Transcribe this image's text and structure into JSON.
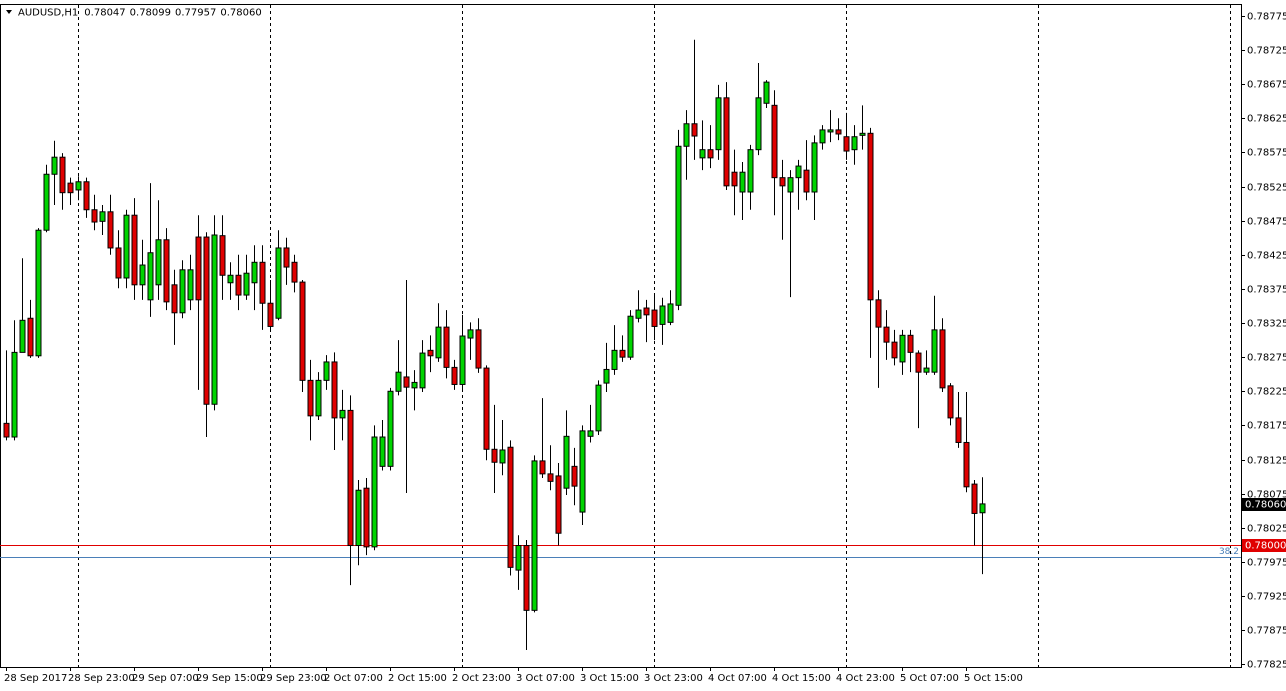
{
  "chart_data": {
    "type": "candlestick",
    "title": "AUDUSD,H1",
    "header_ohlc": [
      "0.78047",
      "0.78099",
      "0.77957",
      "0.78060"
    ],
    "categories": [
      "28 Sep 2017",
      null,
      null,
      null,
      null,
      null,
      null,
      null,
      "28 Sep 23:00",
      null,
      null,
      null,
      null,
      null,
      null,
      null,
      "29 Sep 07:00",
      null,
      null,
      null,
      null,
      null,
      null,
      null,
      "29 Sep 15:00",
      null,
      null,
      null,
      null,
      null,
      null,
      null,
      "29 Sep 23:00",
      null,
      null,
      null,
      null,
      null,
      null,
      null,
      "2 Oct 07:00",
      null,
      null,
      null,
      null,
      null,
      null,
      null,
      "2 Oct 15:00",
      null,
      null,
      null,
      null,
      null,
      null,
      null,
      "2 Oct 23:00",
      null,
      null,
      null,
      null,
      null,
      null,
      null,
      "3 Oct 07:00",
      null,
      null,
      null,
      null,
      null,
      null,
      null,
      "3 Oct 15:00",
      null,
      null,
      null,
      null,
      null,
      null,
      null,
      "3 Oct 23:00",
      null,
      null,
      null,
      null,
      null,
      null,
      null,
      "4 Oct 07:00",
      null,
      null,
      null,
      null,
      null,
      null,
      null,
      "4 Oct 15:00",
      null,
      null,
      null,
      null,
      null,
      null,
      null,
      "4 Oct 23:00",
      null,
      null,
      null,
      null,
      null,
      null,
      null,
      "5 Oct 07:00",
      null,
      null,
      null,
      null,
      null,
      null,
      null,
      "5 Oct 15:00",
      null,
      null
    ],
    "open": [
      0.78178,
      0.78158,
      0.78282,
      0.78332,
      0.78277,
      0.78461,
      0.78543,
      0.78568,
      0.7853,
      0.7852,
      0.78532,
      0.78491,
      0.78474,
      0.78488,
      0.78435,
      0.78391,
      0.78483,
      0.78381,
      0.78359,
      0.78381,
      0.78447,
      0.78381,
      0.7834,
      0.78359,
      0.78451,
      0.78451,
      0.78206,
      0.78453,
      0.78384,
      0.78395,
      0.78366,
      0.78384,
      0.78414,
      0.78354,
      0.78332,
      0.78435,
      0.78414,
      0.78385,
      0.78241,
      0.78189,
      0.78241,
      0.78268,
      0.78186,
      0.78197,
      0.77999,
      0.78083,
      0.77997,
      0.78115,
      0.78115,
      0.78225,
      0.78246,
      0.7823,
      0.7823,
      0.78285,
      0.78274,
      0.78319,
      0.7826,
      0.78235,
      0.78303,
      0.78315,
      0.78259,
      0.7814,
      0.7812,
      0.78143,
      0.77963,
      0.77999,
      0.77904,
      0.78123,
      0.78104,
      0.78101,
      0.78083,
      0.78115,
      0.78048,
      0.78159,
      0.78167,
      0.78237,
      0.78257,
      0.78285,
      0.78275,
      0.78332,
      0.78347,
      0.78344,
      0.78323,
      0.78326,
      0.78351,
      0.78584,
      0.78617,
      0.78567,
      0.78579,
      0.78579,
      0.78655,
      0.78546,
      0.78517,
      0.78517,
      0.78579,
      0.78647,
      0.78644,
      0.78538,
      0.78517,
      0.78538,
      0.78549,
      0.78517,
      0.78589,
      0.78605,
      0.78608,
      0.78598,
      0.78579,
      0.786,
      0.78603,
      0.78359,
      0.78319,
      0.78297,
      0.78268,
      0.78307,
      0.78281,
      0.78253,
      0.78253,
      0.78315,
      0.78233,
      0.78186,
      0.7815,
      0.78089,
      0.78047
    ],
    "high": [
      0.78285,
      0.78329,
      0.7842,
      0.78359,
      0.78464,
      0.78557,
      0.78592,
      0.78574,
      0.78538,
      0.7854,
      0.78538,
      0.78513,
      0.78498,
      0.78513,
      0.78461,
      0.78491,
      0.78508,
      0.78447,
      0.7853,
      0.78505,
      0.78464,
      0.78403,
      0.78417,
      0.78425,
      0.78483,
      0.78458,
      0.78483,
      0.78483,
      0.78414,
      0.78425,
      0.78425,
      0.78439,
      0.78439,
      0.78388,
      0.78461,
      0.7845,
      0.78425,
      0.78388,
      0.78271,
      0.78253,
      0.78278,
      0.78282,
      0.78227,
      0.78219,
      0.78095,
      0.78098,
      0.78175,
      0.78183,
      0.7823,
      0.783,
      0.78388,
      0.78256,
      0.783,
      0.78307,
      0.78354,
      0.78344,
      0.78271,
      0.78337,
      0.78326,
      0.78332,
      0.78263,
      0.78205,
      0.78183,
      0.78153,
      0.78014,
      0.78007,
      0.78131,
      0.78215,
      0.78146,
      0.7812,
      0.78197,
      0.78142,
      0.78175,
      0.78205,
      0.78241,
      0.78296,
      0.78322,
      0.78307,
      0.78344,
      0.78373,
      0.78359,
      0.78366,
      0.78362,
      0.78373,
      0.78608,
      0.78637,
      0.7874,
      0.78622,
      0.78615,
      0.78674,
      0.78678,
      0.78579,
      0.78561,
      0.78586,
      0.78706,
      0.78681,
      0.78666,
      0.78564,
      0.78549,
      0.78564,
      0.78593,
      0.786,
      0.78615,
      0.78637,
      0.78625,
      0.78633,
      0.78615,
      0.78644,
      0.78611,
      0.78373,
      0.78344,
      0.78315,
      0.78315,
      0.78315,
      0.78285,
      0.78285,
      0.78365,
      0.78332,
      0.78237,
      0.78224,
      0.78224,
      0.78095,
      0.78099
    ],
    "low": [
      0.78153,
      0.78153,
      0.78282,
      0.78274,
      0.78274,
      0.78458,
      0.78498,
      0.78491,
      0.78498,
      0.78505,
      0.78479,
      0.78461,
      0.78454,
      0.78425,
      0.78376,
      0.78376,
      0.78359,
      0.78359,
      0.78334,
      0.78359,
      0.78344,
      0.78293,
      0.78332,
      0.78344,
      0.78227,
      0.78158,
      0.78197,
      0.78359,
      0.78359,
      0.78344,
      0.78359,
      0.78344,
      0.78315,
      0.78315,
      0.78329,
      0.78381,
      0.7837,
      0.78224,
      0.78153,
      0.78183,
      0.78227,
      0.78139,
      0.78153,
      0.77941,
      0.7797,
      0.77985,
      0.77992,
      0.78109,
      0.78109,
      0.78219,
      0.78076,
      0.78197,
      0.78224,
      0.78253,
      0.78268,
      0.78244,
      0.78227,
      0.78227,
      0.78271,
      0.78252,
      0.78124,
      0.78076,
      0.78102,
      0.77955,
      0.77934,
      0.77846,
      0.77901,
      0.78098,
      0.7808,
      0.77999,
      0.78073,
      0.78058,
      0.78029,
      0.7815,
      0.78161,
      0.78224,
      0.78249,
      0.78268,
      0.78271,
      0.78326,
      0.78297,
      0.783,
      0.78293,
      0.78322,
      0.78344,
      0.78535,
      0.78564,
      0.78549,
      0.78552,
      0.78564,
      0.7852,
      0.78483,
      0.78476,
      0.78491,
      0.78571,
      0.7864,
      0.78483,
      0.78447,
      0.78363,
      0.78491,
      0.78505,
      0.78476,
      0.78579,
      0.7859,
      0.78593,
      0.78564,
      0.78557,
      0.78579,
      0.78274,
      0.7823,
      0.78271,
      0.78263,
      0.78249,
      0.78253,
      0.78171,
      0.78249,
      0.78249,
      0.78224,
      0.78175,
      0.78142,
      0.78077,
      0.77999,
      0.77957
    ],
    "close": [
      0.78158,
      0.78282,
      0.78329,
      0.78277,
      0.78461,
      0.78543,
      0.78568,
      0.78516,
      0.78516,
      0.78532,
      0.78491,
      0.78473,
      0.78488,
      0.78435,
      0.78391,
      0.78483,
      0.78381,
      0.7841,
      0.78428,
      0.78447,
      0.78356,
      0.7834,
      0.78403,
      0.78403,
      0.78359,
      0.78206,
      0.78454,
      0.78395,
      0.78395,
      0.78366,
      0.78398,
      0.78414,
      0.78354,
      0.7832,
      0.78435,
      0.78407,
      0.78385,
      0.78241,
      0.78189,
      0.78241,
      0.78268,
      0.78186,
      0.78197,
      0.77999,
      0.7808,
      0.77997,
      0.78158,
      0.78158,
      0.78225,
      0.78253,
      0.78231,
      0.78238,
      0.78281,
      0.78277,
      0.78319,
      0.7826,
      0.78235,
      0.78306,
      0.78315,
      0.78259,
      0.7814,
      0.78121,
      0.78139,
      0.77967,
      0.77999,
      0.77904,
      0.78123,
      0.78104,
      0.78093,
      0.78017,
      0.78159,
      0.78086,
      0.78167,
      0.78167,
      0.78234,
      0.78257,
      0.78285,
      0.78275,
      0.78335,
      0.78344,
      0.78337,
      0.7832,
      0.7835,
      0.78353,
      0.78584,
      0.78617,
      0.78599,
      0.78579,
      0.78567,
      0.78655,
      0.78526,
      0.78526,
      0.78546,
      0.78579,
      0.78655,
      0.78678,
      0.78538,
      0.78526,
      0.78538,
      0.78555,
      0.78517,
      0.78589,
      0.78608,
      0.78608,
      0.78602,
      0.78577,
      0.78598,
      0.78603,
      0.78359,
      0.78319,
      0.78297,
      0.78274,
      0.78307,
      0.78282,
      0.78253,
      0.78259,
      0.78315,
      0.7823,
      0.78186,
      0.7815,
      0.78085,
      0.78046,
      0.7806
    ],
    "up_color": "#00d400",
    "down_color": "#e00000",
    "ylim": [
      0.77821,
      0.78791
    ],
    "yticks": [
      0.77825,
      0.77875,
      0.77925,
      0.77975,
      0.78025,
      0.78075,
      0.78125,
      0.78175,
      0.78225,
      0.78275,
      0.78325,
      0.78375,
      0.78425,
      0.78475,
      0.78525,
      0.78575,
      0.78625,
      0.78675,
      0.78725,
      0.78775
    ],
    "hlines": [
      {
        "value": 0.78,
        "label": "0.78000",
        "color": "#e00000",
        "label_position": "axis"
      },
      {
        "value": 0.77982,
        "label": "38.2",
        "color": "#4a7fb8",
        "label_position": "plot"
      }
    ],
    "last_price": {
      "value": 0.7806,
      "label": "0.78060"
    },
    "period_separators": true,
    "grid": false
  }
}
